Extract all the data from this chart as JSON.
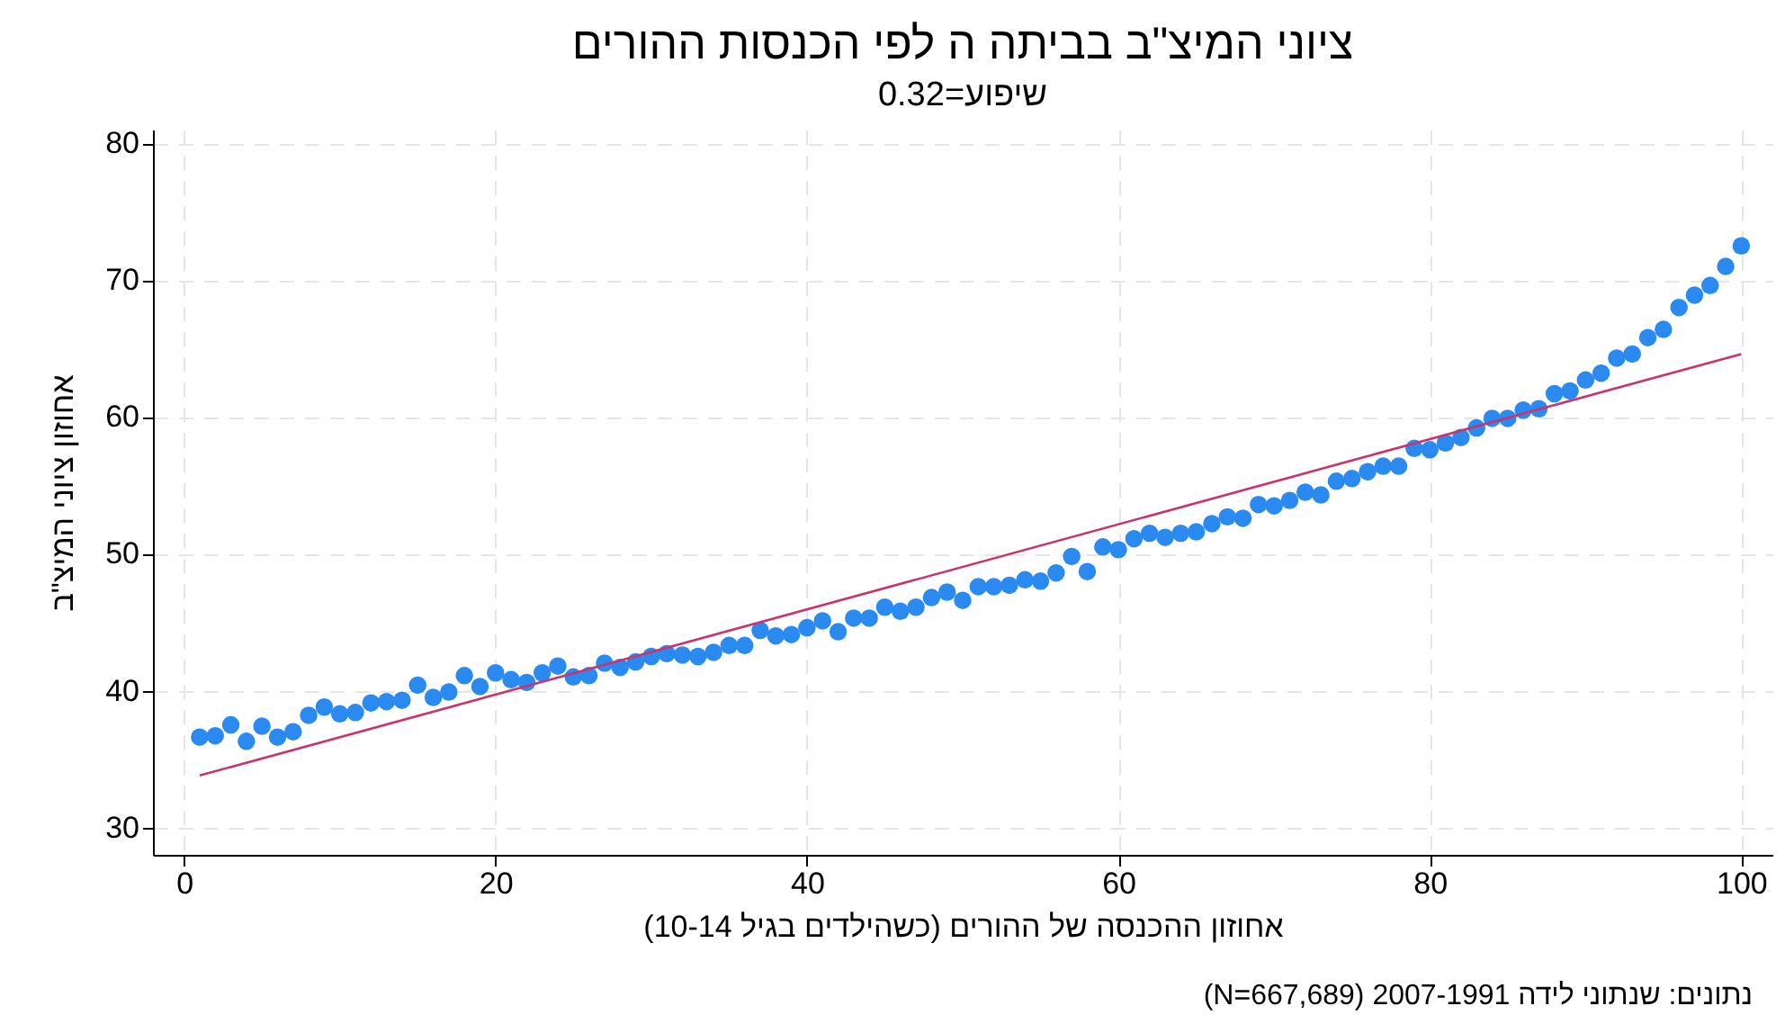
{
  "chart_data": {
    "type": "scatter",
    "title": "ציוני המיצ\"ב בביתה ה לפי הכנסות ההורים",
    "subtitle": "שיפוע=0.32",
    "xlabel": "אחוזון ההכנסה של ההורים (כשהילדים בגיל 10-14)",
    "ylabel": "אחוזון ציוני המיצ\"ב",
    "annotations": [
      "נתונים: שנתוני לידה 2007-1991  (N=667,689)"
    ],
    "xlim": [
      -2,
      102
    ],
    "xticks": [
      0,
      20,
      40,
      60,
      80,
      100
    ],
    "ylim": [
      28,
      81
    ],
    "yticks": [
      30,
      40,
      50,
      60,
      70,
      80
    ],
    "grid": true,
    "x": [
      1,
      2,
      3,
      4,
      5,
      6,
      7,
      8,
      9,
      10,
      11,
      12,
      13,
      14,
      15,
      16,
      17,
      18,
      19,
      20,
      21,
      22,
      23,
      24,
      25,
      26,
      27,
      28,
      29,
      30,
      31,
      32,
      33,
      34,
      35,
      36,
      37,
      38,
      39,
      40,
      41,
      42,
      43,
      44,
      45,
      46,
      47,
      48,
      49,
      50,
      51,
      52,
      53,
      54,
      55,
      56,
      57,
      58,
      59,
      60,
      61,
      62,
      63,
      64,
      65,
      66,
      67,
      68,
      69,
      70,
      71,
      72,
      73,
      74,
      75,
      76,
      77,
      78,
      79,
      80,
      81,
      82,
      83,
      84,
      85,
      86,
      87,
      88,
      89,
      90,
      91,
      92,
      93,
      94,
      95,
      96,
      97,
      98,
      99,
      100
    ],
    "series": [
      {
        "marker": "circle",
        "color": "#2a8af0",
        "values": [
          36.6,
          36.7,
          37.5,
          36.3,
          37.4,
          36.6,
          37.0,
          38.2,
          38.8,
          38.3,
          38.4,
          39.1,
          39.2,
          39.3,
          40.4,
          39.5,
          39.9,
          41.1,
          40.3,
          41.3,
          40.8,
          40.6,
          41.3,
          41.8,
          41.0,
          41.1,
          42.0,
          41.7,
          42.1,
          42.5,
          42.7,
          42.6,
          42.5,
          42.8,
          43.3,
          43.3,
          44.4,
          44.0,
          44.1,
          44.6,
          45.1,
          44.3,
          45.3,
          45.3,
          46.1,
          45.8,
          46.1,
          46.8,
          47.2,
          46.6,
          47.6,
          47.6,
          47.7,
          48.1,
          48.0,
          48.6,
          49.8,
          48.7,
          50.5,
          50.3,
          51.1,
          51.5,
          51.2,
          51.5,
          51.6,
          52.2,
          52.7,
          52.6,
          53.6,
          53.5,
          53.9,
          54.5,
          54.3,
          55.3,
          55.5,
          56.0,
          56.4,
          56.4,
          57.7,
          57.6,
          58.1,
          58.5,
          59.2,
          59.9,
          59.9,
          60.5,
          60.6,
          61.7,
          61.9,
          62.7,
          63.2,
          64.3,
          64.6,
          65.8,
          66.4,
          68.0,
          68.9,
          69.6,
          71.0,
          72.5
        ]
      },
      {
        "type": "line",
        "marker": "none",
        "color": "#c8346e",
        "x": [
          1,
          100
        ],
        "values": [
          33.8,
          64.6
        ]
      }
    ]
  }
}
